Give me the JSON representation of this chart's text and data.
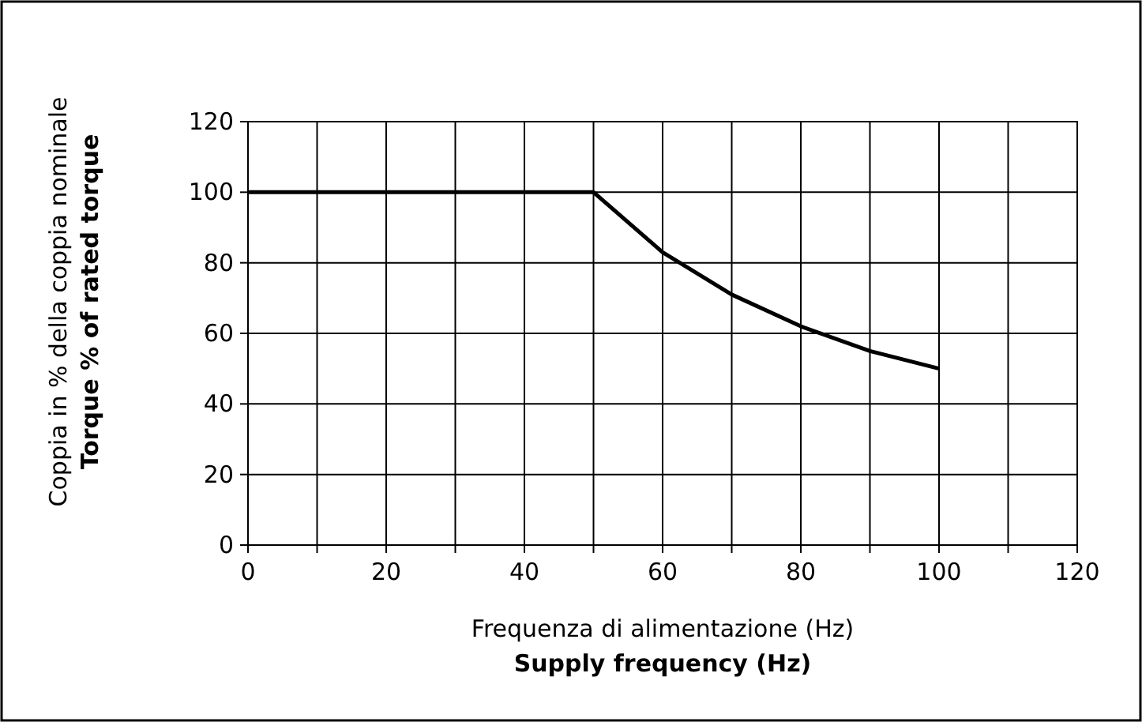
{
  "chart_data": {
    "type": "line",
    "xlabel": "Frequenza di alimentazione (Hz)\nSupply frequency (Hz)",
    "ylabel": "Coppia in % della coppia nominale\nTorque % of rated torque",
    "x": [
      0,
      50,
      60,
      70,
      80,
      90,
      100
    ],
    "series": [
      {
        "color": "#000000",
        "values": [
          100,
          100,
          83,
          71,
          62,
          55,
          50
        ]
      }
    ],
    "xlim": [
      0,
      120
    ],
    "xticks": [
      0,
      {
        "value": 10,
        "label": null
      },
      20,
      {
        "value": 30,
        "label": null
      },
      40,
      {
        "value": 50,
        "label": null
      },
      60,
      {
        "value": 70,
        "label": null
      },
      80,
      {
        "value": 90,
        "label": null
      },
      100,
      {
        "value": 110,
        "label": null
      },
      120
    ],
    "ylim": [
      0,
      120
    ],
    "yticks": [
      0,
      20,
      40,
      60,
      80,
      100,
      120
    ],
    "grid": true,
    "marker": "none",
    "line_style": "solid"
  }
}
